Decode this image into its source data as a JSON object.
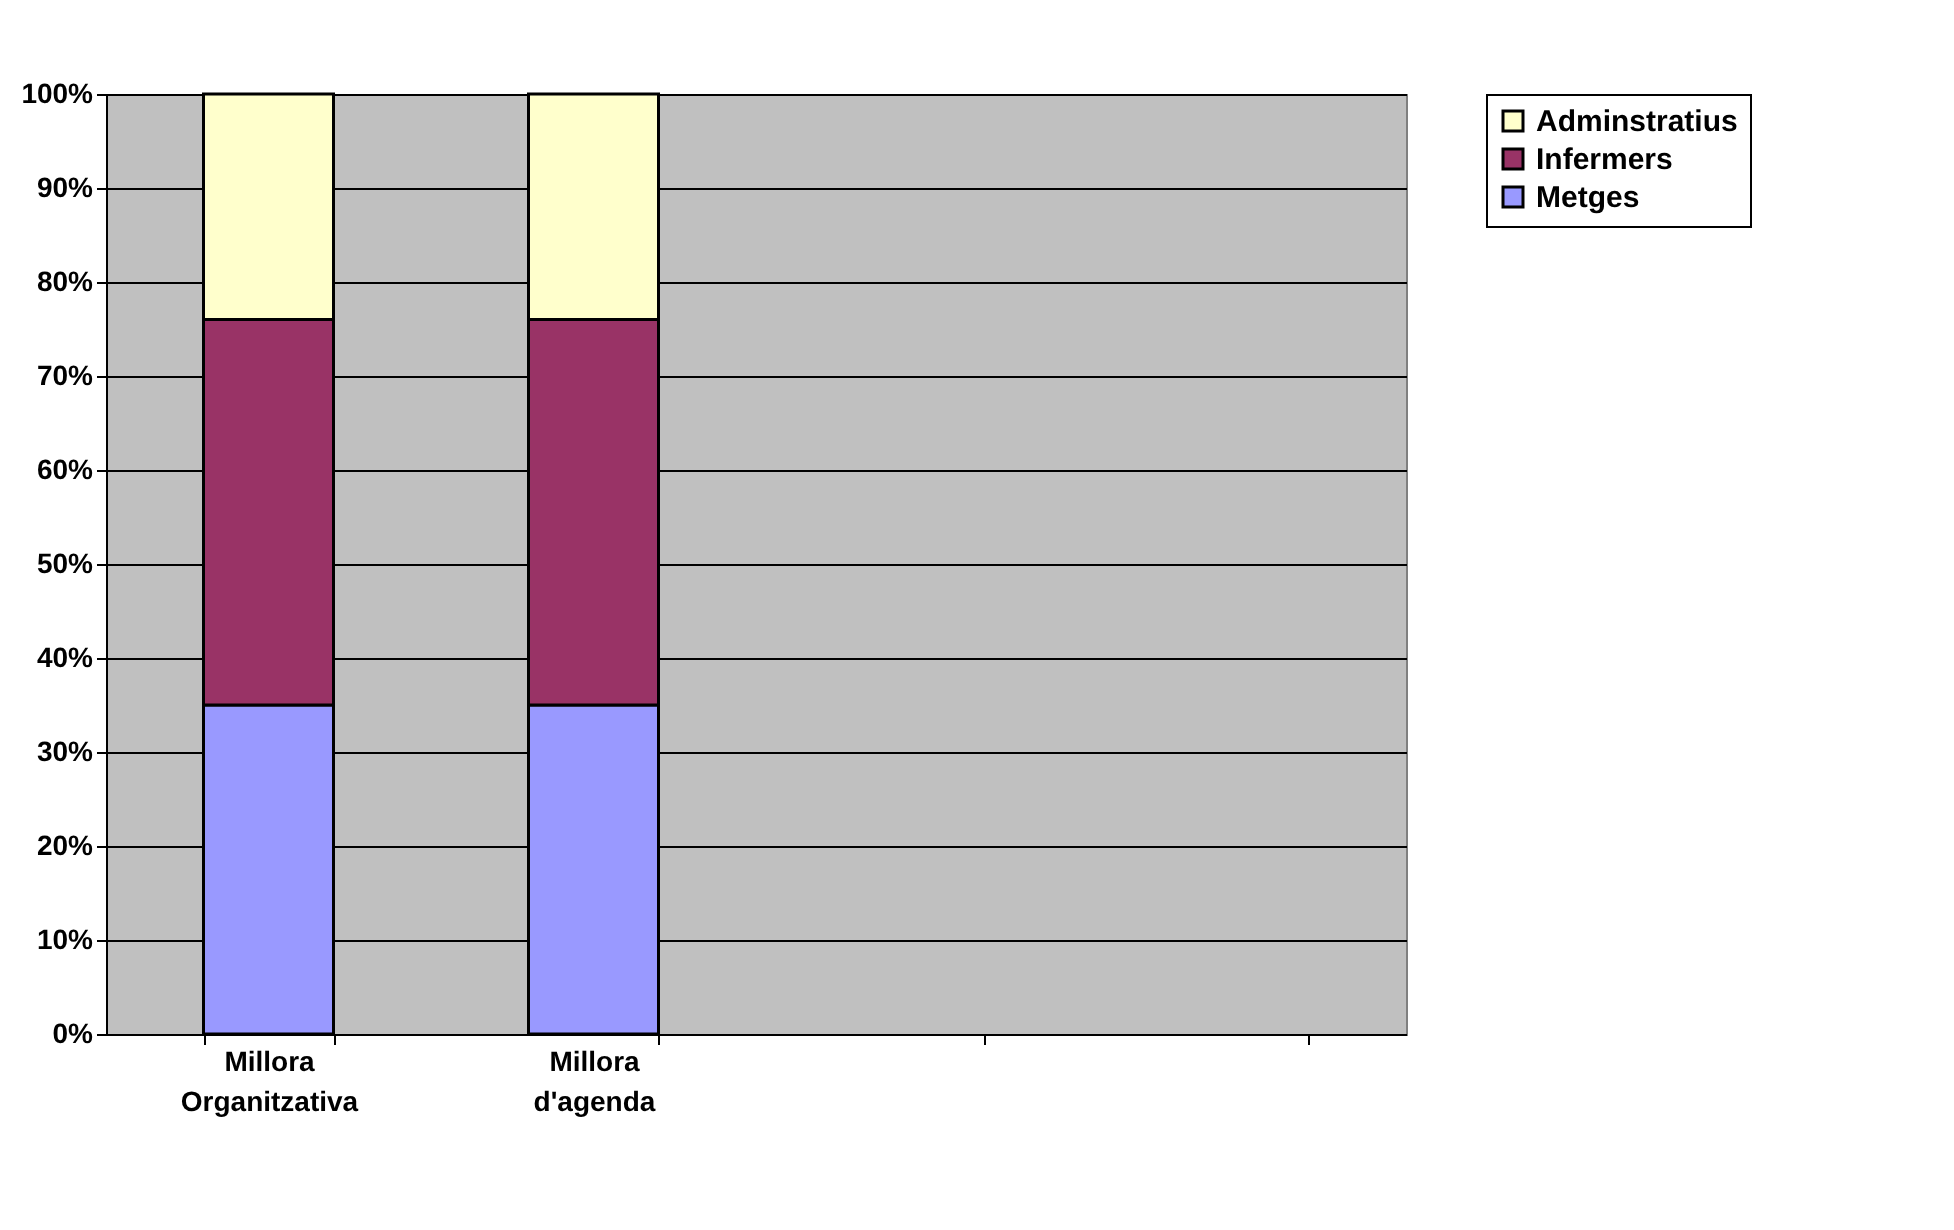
{
  "chart_data": {
    "type": "bar",
    "stacked": true,
    "categories": [
      "Millora Organitzativa",
      "Millora d'agenda",
      null,
      null
    ],
    "series": [
      {
        "name": "Metges",
        "color": "#9999ff",
        "values": [
          35,
          35,
          null,
          null
        ]
      },
      {
        "name": "Infermers",
        "color": "#993366",
        "values": [
          41,
          41,
          null,
          null
        ]
      },
      {
        "name": "Adminstratius",
        "color": "#ffffcc",
        "values": [
          24,
          24,
          null,
          null
        ]
      }
    ],
    "ylim": [
      0,
      100
    ],
    "yticks": [
      {
        "value": 0,
        "label": "0%"
      },
      {
        "value": 10,
        "label": "10%"
      },
      {
        "value": 20,
        "label": "20%"
      },
      {
        "value": 30,
        "label": "30%"
      },
      {
        "value": 40,
        "label": "40%"
      },
      {
        "value": 50,
        "label": "50%"
      },
      {
        "value": 60,
        "label": "60%"
      },
      {
        "value": 70,
        "label": "70%"
      },
      {
        "value": 80,
        "label": "80%"
      },
      {
        "value": 90,
        "label": "90%"
      },
      {
        "value": 100,
        "label": "100%"
      }
    ],
    "grid": "y",
    "legend": "right"
  }
}
